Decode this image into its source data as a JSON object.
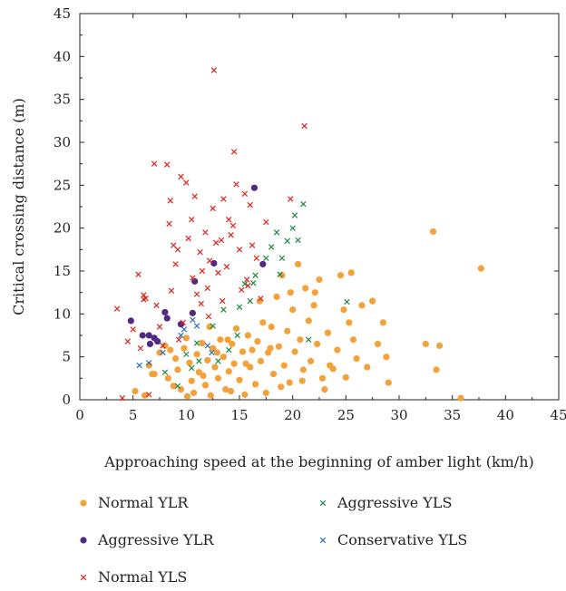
{
  "chart_data": {
    "type": "scatter",
    "xlabel": "Approaching speed at the beginning of amber light (km/h)",
    "ylabel": "Critical crossing distance (m)",
    "xlim": [
      0,
      45
    ],
    "ylim": [
      0,
      45
    ],
    "xticks": [
      0,
      5,
      10,
      15,
      20,
      25,
      30,
      35,
      40,
      45
    ],
    "yticks": [
      0,
      5,
      10,
      15,
      20,
      25,
      30,
      35,
      40,
      45
    ],
    "legend_placement": "bottom",
    "series": [
      {
        "name": "Normal YLR",
        "marker": "circle",
        "color": "#f4a13a",
        "points": [
          [
            5.2,
            1.0
          ],
          [
            6.1,
            0.5
          ],
          [
            6.5,
            4.0
          ],
          [
            7.0,
            3.0
          ],
          [
            7.5,
            5.5
          ],
          [
            8.0,
            6.3
          ],
          [
            8.3,
            2.5
          ],
          [
            8.8,
            1.6
          ],
          [
            9.0,
            4.8
          ],
          [
            9.2,
            3.5
          ],
          [
            9.5,
            1.2
          ],
          [
            9.8,
            6.0
          ],
          [
            10.0,
            7.2
          ],
          [
            10.3,
            4.3
          ],
          [
            10.5,
            2.2
          ],
          [
            10.7,
            0.8
          ],
          [
            11.0,
            5.3
          ],
          [
            11.2,
            3.2
          ],
          [
            11.5,
            6.6
          ],
          [
            11.8,
            1.7
          ],
          [
            12.0,
            4.6
          ],
          [
            12.3,
            0.5
          ],
          [
            12.5,
            6.0
          ],
          [
            12.7,
            3.8
          ],
          [
            13.0,
            2.5
          ],
          [
            13.2,
            7.0
          ],
          [
            13.5,
            5.0
          ],
          [
            13.7,
            1.2
          ],
          [
            14.0,
            3.3
          ],
          [
            14.3,
            6.5
          ],
          [
            14.5,
            4.2
          ],
          [
            14.7,
            8.3
          ],
          [
            15.0,
            2.3
          ],
          [
            15.3,
            5.6
          ],
          [
            15.5,
            0.6
          ],
          [
            15.8,
            7.5
          ],
          [
            16.0,
            3.8
          ],
          [
            16.2,
            5.8
          ],
          [
            16.5,
            1.8
          ],
          [
            16.7,
            6.8
          ],
          [
            17.0,
            4.5
          ],
          [
            17.2,
            9.0
          ],
          [
            17.5,
            0.8
          ],
          [
            17.7,
            5.5
          ],
          [
            18.0,
            8.5
          ],
          [
            18.2,
            3.0
          ],
          [
            18.5,
            12.0
          ],
          [
            18.7,
            6.2
          ],
          [
            19.0,
            14.5
          ],
          [
            19.2,
            4.0
          ],
          [
            19.5,
            8.0
          ],
          [
            19.7,
            2.0
          ],
          [
            20.0,
            10.5
          ],
          [
            20.2,
            5.6
          ],
          [
            20.5,
            15.8
          ],
          [
            20.7,
            7.0
          ],
          [
            21.0,
            3.5
          ],
          [
            21.2,
            13.0
          ],
          [
            21.5,
            9.2
          ],
          [
            21.7,
            4.5
          ],
          [
            22.0,
            11.0
          ],
          [
            22.3,
            6.5
          ],
          [
            22.5,
            14.0
          ],
          [
            22.8,
            2.5
          ],
          [
            23.0,
            1.2
          ],
          [
            23.3,
            7.8
          ],
          [
            23.8,
            3.6
          ],
          [
            24.2,
            5.8
          ],
          [
            24.5,
            14.5
          ],
          [
            24.8,
            10.5
          ],
          [
            25.0,
            2.6
          ],
          [
            25.3,
            9.0
          ],
          [
            25.5,
            14.8
          ],
          [
            25.7,
            7.0
          ],
          [
            26.0,
            4.8
          ],
          [
            27.0,
            3.8
          ],
          [
            27.5,
            11.5
          ],
          [
            28.0,
            6.5
          ],
          [
            28.5,
            9.0
          ],
          [
            29.0,
            2.0
          ],
          [
            32.5,
            6.5
          ],
          [
            33.2,
            19.6
          ],
          [
            33.8,
            6.3
          ],
          [
            33.5,
            3.5
          ],
          [
            35.8,
            0.2
          ],
          [
            37.7,
            15.3
          ],
          [
            6.8,
            3.0
          ],
          [
            8.5,
            5.8
          ],
          [
            10.1,
            0.4
          ],
          [
            11.6,
            2.8
          ],
          [
            12.2,
            8.5
          ],
          [
            13.9,
            7.0
          ],
          [
            15.6,
            4.2
          ],
          [
            16.9,
            11.5
          ],
          [
            18.9,
            1.5
          ],
          [
            20.9,
            2.2
          ],
          [
            22.1,
            12.5
          ],
          [
            23.5,
            4.0
          ],
          [
            19.8,
            12.5
          ],
          [
            17.9,
            6.0
          ],
          [
            14.2,
            1.0
          ],
          [
            12.9,
            5.5
          ],
          [
            26.5,
            11.0
          ],
          [
            28.8,
            5.0
          ]
        ]
      },
      {
        "name": "Aggressive YLR",
        "marker": "circle",
        "color": "#512883",
        "points": [
          [
            4.8,
            9.2
          ],
          [
            5.9,
            7.5
          ],
          [
            6.5,
            7.5
          ],
          [
            6.6,
            6.5
          ],
          [
            7.0,
            7.2
          ],
          [
            7.3,
            6.8
          ],
          [
            8.0,
            10.2
          ],
          [
            8.2,
            9.5
          ],
          [
            9.5,
            8.8
          ],
          [
            10.6,
            10.1
          ],
          [
            10.8,
            13.8
          ],
          [
            12.6,
            15.9
          ],
          [
            16.4,
            24.7
          ],
          [
            17.2,
            15.8
          ]
        ]
      },
      {
        "name": "Normal YLS",
        "marker": "x",
        "color": "#e2231a",
        "points": [
          [
            3.5,
            10.6
          ],
          [
            4.0,
            0.2
          ],
          [
            4.5,
            6.8
          ],
          [
            5.5,
            14.6
          ],
          [
            5.7,
            6.0
          ],
          [
            6.0,
            12.2
          ],
          [
            6.2,
            11.8
          ],
          [
            6.5,
            0.6
          ],
          [
            7.0,
            27.5
          ],
          [
            7.2,
            11.0
          ],
          [
            7.5,
            8.5
          ],
          [
            8.2,
            27.4
          ],
          [
            8.4,
            20.5
          ],
          [
            8.5,
            23.2
          ],
          [
            8.8,
            18.0
          ],
          [
            9.0,
            15.8
          ],
          [
            9.2,
            17.5
          ],
          [
            9.5,
            26.0
          ],
          [
            9.7,
            9.0
          ],
          [
            10.0,
            25.3
          ],
          [
            10.2,
            18.8
          ],
          [
            10.5,
            21.0
          ],
          [
            10.8,
            23.7
          ],
          [
            11.0,
            12.3
          ],
          [
            11.3,
            17.2
          ],
          [
            11.5,
            15.0
          ],
          [
            11.8,
            19.5
          ],
          [
            12.0,
            13.0
          ],
          [
            12.2,
            16.2
          ],
          [
            12.5,
            22.3
          ],
          [
            12.6,
            38.4
          ],
          [
            12.8,
            18.3
          ],
          [
            13.0,
            14.8
          ],
          [
            13.3,
            18.6
          ],
          [
            13.5,
            23.4
          ],
          [
            13.8,
            15.5
          ],
          [
            14.0,
            21.0
          ],
          [
            14.2,
            19.2
          ],
          [
            14.5,
            28.9
          ],
          [
            14.7,
            25.1
          ],
          [
            15.0,
            17.5
          ],
          [
            15.2,
            12.8
          ],
          [
            15.5,
            24.0
          ],
          [
            15.7,
            14.0
          ],
          [
            16.0,
            22.7
          ],
          [
            16.2,
            18.0
          ],
          [
            17.5,
            20.7
          ],
          [
            19.8,
            23.4
          ],
          [
            21.1,
            31.9
          ],
          [
            5.0,
            8.2
          ],
          [
            6.0,
            11.7
          ],
          [
            7.8,
            6.3
          ],
          [
            8.6,
            12.7
          ],
          [
            9.3,
            7.0
          ],
          [
            10.6,
            14.2
          ],
          [
            11.4,
            11.2
          ],
          [
            12.1,
            9.7
          ],
          [
            13.4,
            11.5
          ],
          [
            14.4,
            20.3
          ],
          [
            15.8,
            13.3
          ],
          [
            16.6,
            16.5
          ],
          [
            17.0,
            11.8
          ]
        ]
      },
      {
        "name": "Aggressive YLS",
        "marker": "x",
        "color": "#1b8a3a",
        "points": [
          [
            8.0,
            3.2
          ],
          [
            9.2,
            1.6
          ],
          [
            10.0,
            5.3
          ],
          [
            11.0,
            6.6
          ],
          [
            11.2,
            4.5
          ],
          [
            12.5,
            8.6
          ],
          [
            13.0,
            4.5
          ],
          [
            13.5,
            10.5
          ],
          [
            14.0,
            5.8
          ],
          [
            15.0,
            10.8
          ],
          [
            15.5,
            13.5
          ],
          [
            16.0,
            11.5
          ],
          [
            16.5,
            14.5
          ],
          [
            17.5,
            16.5
          ],
          [
            18.0,
            17.8
          ],
          [
            18.5,
            19.5
          ],
          [
            19.0,
            16.5
          ],
          [
            19.5,
            18.5
          ],
          [
            20.0,
            20.0
          ],
          [
            20.2,
            21.5
          ],
          [
            20.5,
            18.6
          ],
          [
            21.0,
            22.8
          ],
          [
            21.5,
            7.0
          ],
          [
            25.1,
            11.4
          ],
          [
            10.5,
            3.7
          ],
          [
            14.8,
            7.5
          ],
          [
            16.3,
            13.6
          ],
          [
            18.8,
            14.6
          ]
        ]
      },
      {
        "name": "Conservative YLS",
        "marker": "x",
        "color": "#2e6db4",
        "points": [
          [
            5.6,
            4.0
          ],
          [
            6.5,
            4.3
          ],
          [
            7.8,
            5.5
          ],
          [
            9.5,
            7.5
          ],
          [
            9.8,
            8.2
          ],
          [
            10.6,
            9.3
          ],
          [
            11.0,
            8.6
          ],
          [
            12.0,
            6.3
          ],
          [
            12.4,
            5.5
          ]
        ]
      }
    ]
  }
}
